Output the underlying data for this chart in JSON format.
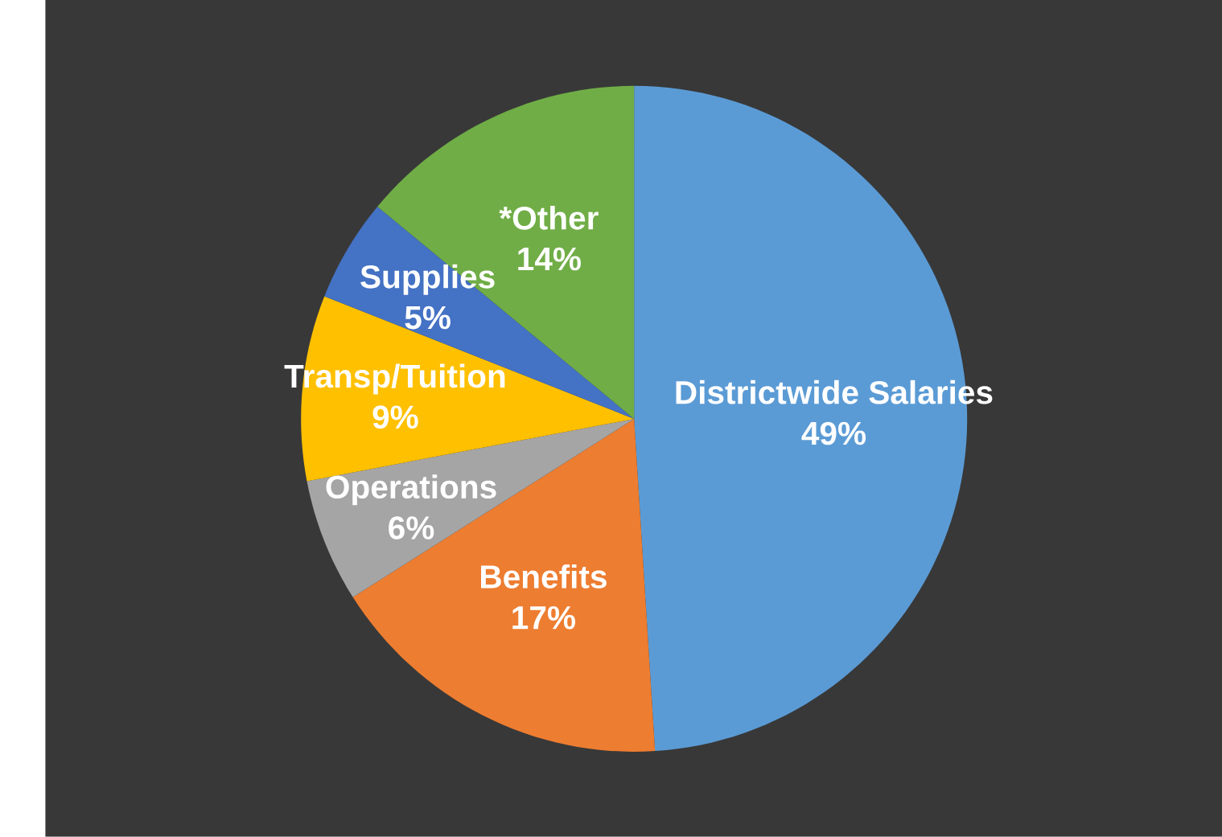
{
  "chart_data": {
    "type": "pie",
    "categories": [
      "Districtwide Salaries",
      "Benefits",
      "Operations",
      "Transp/Tuition",
      "Supplies",
      "*Other"
    ],
    "values": [
      49,
      17,
      6,
      9,
      5,
      14
    ],
    "value_labels": [
      "49%",
      "17%",
      "6%",
      "9%",
      "5%",
      "14%"
    ],
    "colors": [
      "#5b9bd5",
      "#ed7d31",
      "#a5a5a5",
      "#ffc000",
      "#4472c4",
      "#70ad47"
    ]
  }
}
